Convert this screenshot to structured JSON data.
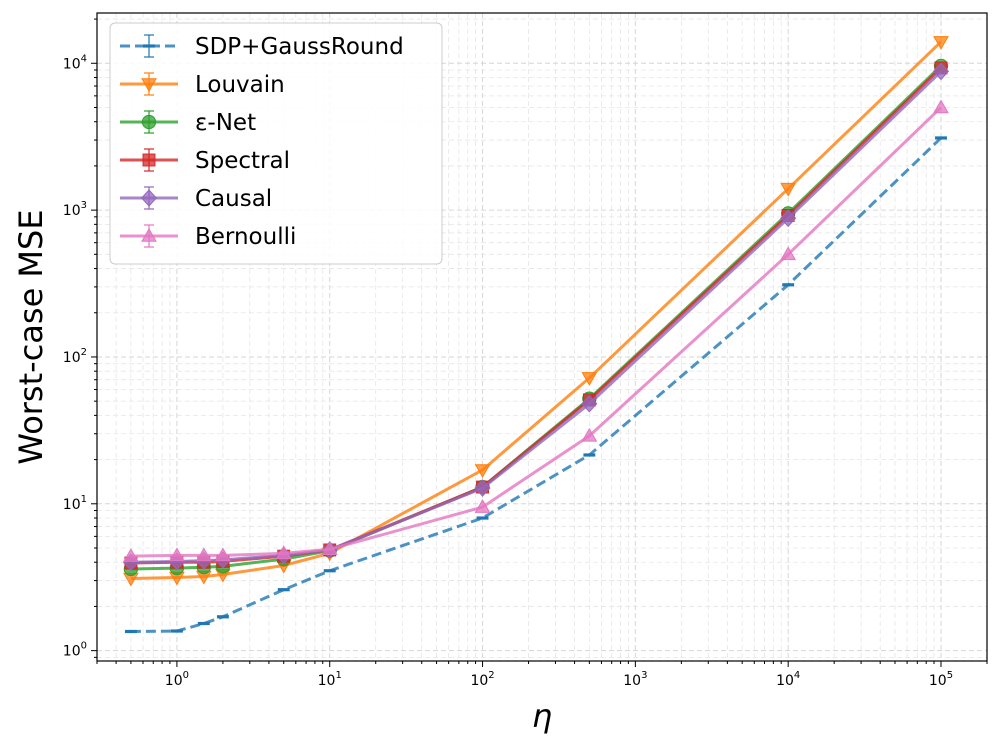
{
  "chart_data": {
    "type": "line",
    "xscale": "log",
    "yscale": "log",
    "xlabel": "η",
    "ylabel": "Worst-case MSE",
    "xlim": [
      0.3,
      200000
    ],
    "ylim": [
      0.85,
      22000
    ],
    "grid": true,
    "legend_position": "top-left",
    "x": [
      0.5,
      1,
      1.5,
      2,
      5,
      10,
      100,
      500,
      10000,
      100000
    ],
    "x_ticks": [
      {
        "value": 1,
        "base": "10",
        "exp": "0"
      },
      {
        "value": 10,
        "base": "10",
        "exp": "1"
      },
      {
        "value": 100,
        "base": "10",
        "exp": "2"
      },
      {
        "value": 1000,
        "base": "10",
        "exp": "3"
      },
      {
        "value": 10000,
        "base": "10",
        "exp": "4"
      },
      {
        "value": 100000,
        "base": "10",
        "exp": "5"
      }
    ],
    "y_ticks": [
      {
        "value": 1,
        "base": "10",
        "exp": "0"
      },
      {
        "value": 10,
        "base": "10",
        "exp": "1"
      },
      {
        "value": 100,
        "base": "10",
        "exp": "2"
      },
      {
        "value": 1000,
        "base": "10",
        "exp": "3"
      },
      {
        "value": 10000,
        "base": "10",
        "exp": "4"
      }
    ],
    "series": [
      {
        "name": "SDP+GaussRound",
        "color": "#1f77b4",
        "marker": "hline",
        "dashed": true,
        "values": [
          1.35,
          1.36,
          1.53,
          1.7,
          2.6,
          3.5,
          8.0,
          21.5,
          310,
          3100
        ]
      },
      {
        "name": "Louvain",
        "color": "#ff7f0e",
        "marker": "triangle-down",
        "dashed": false,
        "values": [
          3.1,
          3.15,
          3.2,
          3.3,
          3.8,
          4.6,
          17,
          72,
          1400,
          14000
        ]
      },
      {
        "name": "ε-Net",
        "color": "#2ca02c",
        "marker": "circle",
        "dashed": false,
        "values": [
          3.6,
          3.65,
          3.7,
          3.75,
          4.2,
          4.8,
          13,
          52,
          950,
          9600
        ]
      },
      {
        "name": "Spectral",
        "color": "#d62728",
        "marker": "square",
        "dashed": false,
        "values": [
          3.95,
          4.0,
          4.0,
          4.05,
          4.4,
          4.85,
          13,
          51,
          920,
          9300
        ]
      },
      {
        "name": "Causal",
        "color": "#9467bd",
        "marker": "diamond",
        "dashed": false,
        "values": [
          4.0,
          4.05,
          4.1,
          4.15,
          4.45,
          4.85,
          12.8,
          48,
          880,
          8800
        ]
      },
      {
        "name": "Bernoulli",
        "color": "#e377c2",
        "marker": "triangle-up",
        "dashed": false,
        "values": [
          4.4,
          4.45,
          4.45,
          4.45,
          4.6,
          4.9,
          9.5,
          29,
          500,
          5000
        ]
      }
    ]
  }
}
